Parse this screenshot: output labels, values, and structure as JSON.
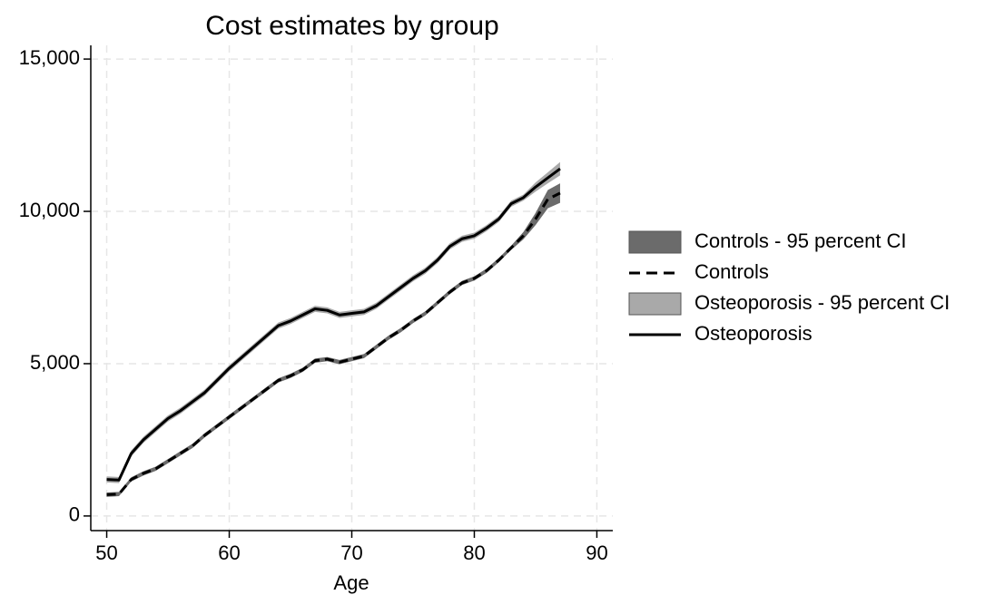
{
  "chart_data": {
    "type": "line",
    "title": "Cost estimates by group",
    "xlabel": "Age",
    "x": [
      50,
      51,
      52,
      53,
      54,
      55,
      56,
      57,
      58,
      59,
      60,
      61,
      62,
      63,
      64,
      65,
      66,
      67,
      68,
      69,
      70,
      71,
      72,
      73,
      74,
      75,
      76,
      77,
      78,
      79,
      80,
      81,
      82,
      83,
      84,
      85,
      86,
      87
    ],
    "series": [
      {
        "name": "Controls - 95 percent CI",
        "style": "band",
        "color": "#6b6b6b",
        "lower": [
          630,
          650,
          1130,
          1330,
          1480,
          1730,
          1980,
          2230,
          2580,
          2880,
          3180,
          3480,
          3780,
          4080,
          4380,
          4530,
          4730,
          5030,
          5080,
          4980,
          5080,
          5180,
          5480,
          5780,
          6030,
          6330,
          6580,
          6930,
          7280,
          7580,
          7730,
          7980,
          8330,
          8730,
          9080,
          9550,
          10100,
          10280
        ],
        "upper": [
          770,
          790,
          1270,
          1470,
          1620,
          1870,
          2120,
          2370,
          2720,
          3020,
          3320,
          3620,
          3920,
          4220,
          4520,
          4670,
          4870,
          5170,
          5220,
          5120,
          5220,
          5320,
          5620,
          5920,
          6170,
          6470,
          6720,
          7070,
          7420,
          7720,
          7870,
          8120,
          8470,
          8870,
          9320,
          9950,
          10700,
          10920
        ]
      },
      {
        "name": "Controls",
        "style": "dash",
        "color": "#000000",
        "values": [
          700,
          720,
          1200,
          1400,
          1550,
          1800,
          2050,
          2300,
          2650,
          2950,
          3250,
          3550,
          3850,
          4150,
          4450,
          4600,
          4800,
          5100,
          5150,
          5050,
          5150,
          5250,
          5550,
          5850,
          6100,
          6400,
          6650,
          7000,
          7350,
          7650,
          7800,
          8050,
          8400,
          8800,
          9200,
          9750,
          10400,
          10600
        ]
      },
      {
        "name": "Osteoporosis - 95 percent CI",
        "style": "band",
        "color": "#a9a9a9",
        "lower": [
          1100,
          1080,
          1950,
          2400,
          2750,
          3100,
          3350,
          3650,
          3950,
          4350,
          4750,
          5100,
          5450,
          5800,
          6150,
          6300,
          6500,
          6700,
          6650,
          6500,
          6550,
          6600,
          6800,
          7100,
          7400,
          7700,
          7950,
          8300,
          8750,
          9000,
          9100,
          9350,
          9650,
          10150,
          10350,
          10650,
          10920,
          11180
        ],
        "upper": [
          1300,
          1280,
          2150,
          2600,
          2950,
          3300,
          3550,
          3850,
          4150,
          4550,
          4950,
          5300,
          5650,
          6000,
          6350,
          6500,
          6700,
          6900,
          6850,
          6700,
          6750,
          6800,
          7000,
          7300,
          7600,
          7900,
          8150,
          8500,
          8950,
          9200,
          9300,
          9550,
          9850,
          10350,
          10550,
          10950,
          11280,
          11620
        ]
      },
      {
        "name": "Osteoporosis",
        "style": "solid",
        "color": "#000000",
        "values": [
          1200,
          1180,
          2050,
          2500,
          2850,
          3200,
          3450,
          3750,
          4050,
          4450,
          4850,
          5200,
          5550,
          5900,
          6250,
          6400,
          6600,
          6800,
          6750,
          6600,
          6650,
          6700,
          6900,
          7200,
          7500,
          7800,
          8050,
          8400,
          8850,
          9100,
          9200,
          9450,
          9750,
          10250,
          10450,
          10800,
          11100,
          11400
        ]
      }
    ],
    "xlim": [
      48.7,
      91.3
    ],
    "xticks": [
      50,
      60,
      70,
      80,
      90
    ],
    "ylim": [
      -480,
      15450
    ],
    "yticks": [
      0,
      {
        "value": 5000,
        "label": "5,000"
      },
      {
        "value": 10000,
        "label": "10,000"
      },
      {
        "value": 15000,
        "label": "15,000"
      }
    ],
    "grid": true,
    "legend": "right"
  }
}
